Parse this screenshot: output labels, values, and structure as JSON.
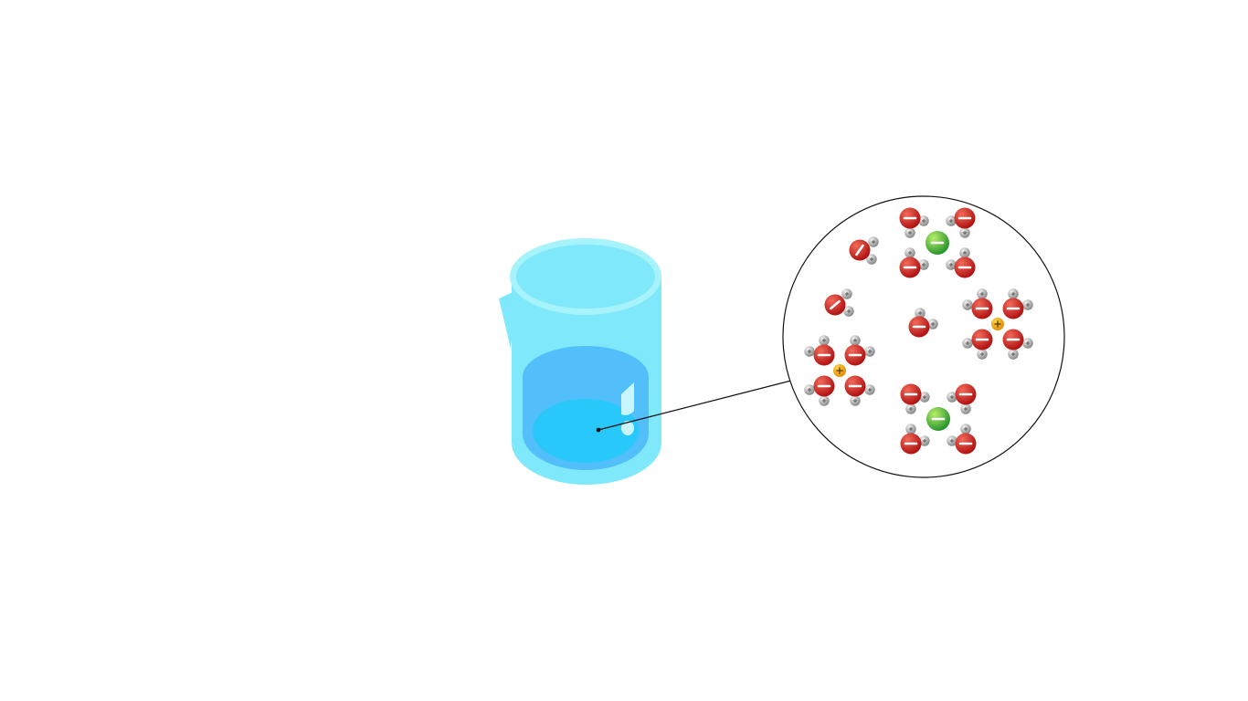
{
  "colors": {
    "background": "#ffffff",
    "beaker_glass": "#7fe8fa",
    "beaker_rim": "#a6f3fc",
    "solution": "#52bffb",
    "solution_surface": "#28c8fb",
    "oxygen": "#d32222",
    "hydrogen": "#bcbcbc",
    "anion": "#42b33c",
    "cation": "#f5a623",
    "zoom_outline": "#111111"
  },
  "icons": {
    "water_molecule": "water-molecule-icon",
    "anion": "anion-icon",
    "cation": "cation-icon"
  },
  "charges": {
    "oxygen": "partial-negative",
    "hydrogen": "partial-positive",
    "anion": "negative",
    "cation": "positive"
  },
  "zoom_view": {
    "free_water_molecules": 3,
    "hydrated_anions": 2,
    "hydrated_cations": 2,
    "water_per_ion_shell": 4
  }
}
